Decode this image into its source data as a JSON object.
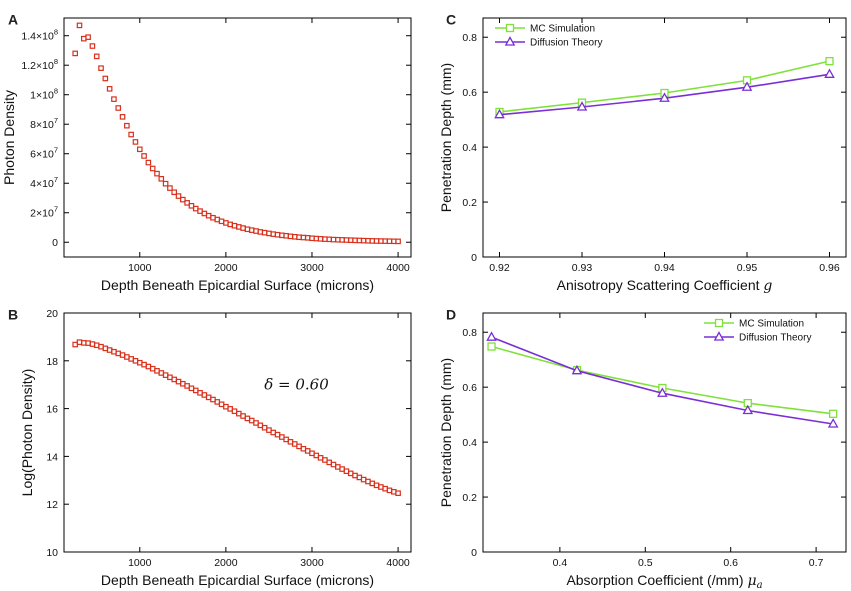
{
  "chart_data": [
    {
      "panel": "A",
      "type": "scatter",
      "xlabel": "Depth Beneath Epicardial Surface (microns)",
      "ylabel": "Photon Density",
      "xlim": [
        120,
        4150
      ],
      "ylim": [
        -10000000,
        152000000
      ],
      "x_ticks": [
        1000,
        2000,
        3000,
        4000
      ],
      "x_tick_labels": [
        "1000",
        "2000",
        "3000",
        "4000"
      ],
      "y_ticks": [
        0,
        20000000,
        40000000,
        60000000,
        80000000,
        100000000,
        120000000,
        140000000
      ],
      "y_tick_mantissa": [
        "0",
        "2×10",
        "4×10",
        "6×10",
        "8×10",
        "1×10",
        "1.2×10",
        "1.4×10"
      ],
      "y_tick_exponent": [
        "",
        "7",
        "7",
        "7",
        "7",
        "8",
        "8",
        "8"
      ],
      "marker_color": "#d9301c",
      "series": [
        {
          "name": "Photon Density",
          "x": [
            250,
            300,
            350,
            400,
            450,
            500,
            550,
            600,
            650,
            700,
            750,
            800,
            850,
            900,
            950,
            1000,
            1050,
            1100,
            1150,
            1200,
            1250,
            1300,
            1350,
            1400,
            1450,
            1500,
            1550,
            1600,
            1650,
            1700,
            1750,
            1800,
            1850,
            1900,
            1950,
            2000,
            2050,
            2100,
            2150,
            2200,
            2250,
            2300,
            2350,
            2400,
            2450,
            2500,
            2550,
            2600,
            2650,
            2700,
            2750,
            2800,
            2850,
            2900,
            2950,
            3000,
            3050,
            3100,
            3150,
            3200,
            3250,
            3300,
            3350,
            3400,
            3450,
            3500,
            3550,
            3600,
            3650,
            3700,
            3750,
            3800,
            3850,
            3900,
            3950,
            4000
          ],
          "y": [
            128000000,
            147000000,
            138000000,
            139000000,
            133000000,
            126000000,
            118000000,
            111000000,
            104000000,
            97000000,
            91000000,
            85000000,
            79000000,
            73000000,
            68000000,
            63000000,
            58500000,
            54000000,
            50000000,
            46500000,
            43000000,
            39700000,
            36700000,
            33900000,
            31300000,
            28900000,
            26700000,
            24700000,
            22800000,
            21100000,
            19500000,
            18000000,
            16600000,
            15400000,
            14200000,
            13100000,
            12100000,
            11200000,
            10400000,
            9600000,
            8800000,
            8200000,
            7600000,
            7000000,
            6500000,
            6000000,
            5500000,
            5100000,
            4700000,
            4400000,
            4000000,
            3700000,
            3400000,
            3200000,
            3000000,
            2700000,
            2500000,
            2300000,
            2100000,
            2000000,
            1800000,
            1700000,
            1600000,
            1500000,
            1400000,
            1300000,
            1200000,
            1100000,
            1000000,
            900000,
            850000,
            800000,
            750000,
            700000,
            650000,
            600000
          ]
        }
      ]
    },
    {
      "panel": "B",
      "type": "scatter",
      "xlabel": "Depth Beneath Epicardial Surface (microns)",
      "ylabel": "Log(Photon Density)",
      "xlim": [
        120,
        4150
      ],
      "ylim": [
        10,
        20
      ],
      "x_ticks": [
        1000,
        2000,
        3000,
        4000
      ],
      "x_tick_labels": [
        "1000",
        "2000",
        "3000",
        "4000"
      ],
      "y_ticks": [
        10,
        12,
        14,
        16,
        18,
        20
      ],
      "y_tick_labels": [
        "10",
        "12",
        "14",
        "16",
        "18",
        "20"
      ],
      "annotation": {
        "text": "δ = 0.60",
        "x": 2820,
        "y": 16.8
      },
      "marker_color": "#d9301c",
      "series": [
        {
          "name": "Log(Photon Density)",
          "x": [
            250,
            300,
            350,
            400,
            450,
            500,
            550,
            600,
            650,
            700,
            750,
            800,
            850,
            900,
            950,
            1000,
            1050,
            1100,
            1150,
            1200,
            1250,
            1300,
            1350,
            1400,
            1450,
            1500,
            1550,
            1600,
            1650,
            1700,
            1750,
            1800,
            1850,
            1900,
            1950,
            2000,
            2050,
            2100,
            2150,
            2200,
            2250,
            2300,
            2350,
            2400,
            2450,
            2500,
            2550,
            2600,
            2650,
            2700,
            2750,
            2800,
            2850,
            2900,
            2950,
            3000,
            3050,
            3100,
            3150,
            3200,
            3250,
            3300,
            3350,
            3400,
            3450,
            3500,
            3550,
            3600,
            3650,
            3700,
            3750,
            3800,
            3850,
            3900,
            3950,
            4000
          ],
          "y": [
            18.68,
            18.78,
            18.75,
            18.74,
            18.7,
            18.65,
            18.59,
            18.52,
            18.45,
            18.38,
            18.31,
            18.24,
            18.16,
            18.08,
            18.0,
            17.92,
            17.84,
            17.76,
            17.67,
            17.58,
            17.49,
            17.4,
            17.31,
            17.22,
            17.13,
            17.04,
            16.95,
            16.85,
            16.76,
            16.66,
            16.57,
            16.47,
            16.38,
            16.28,
            16.18,
            16.08,
            15.99,
            15.89,
            15.79,
            15.69,
            15.59,
            15.5,
            15.4,
            15.3,
            15.2,
            15.1,
            15.0,
            14.91,
            14.81,
            14.71,
            14.61,
            14.52,
            14.42,
            14.32,
            14.23,
            14.13,
            14.04,
            13.94,
            13.85,
            13.75,
            13.66,
            13.56,
            13.47,
            13.38,
            13.29,
            13.2,
            13.12,
            13.03,
            12.95,
            12.87,
            12.79,
            12.72,
            12.65,
            12.58,
            12.52,
            12.46
          ]
        }
      ]
    },
    {
      "panel": "C",
      "type": "line",
      "xlabel": "Anisotropy Scattering Coefficient ",
      "xlabel_symbol": "g",
      "ylabel": "Penetration Depth (mm)",
      "xlim": [
        0.918,
        0.962
      ],
      "ylim": [
        0,
        0.87
      ],
      "x_ticks": [
        0.92,
        0.93,
        0.94,
        0.95,
        0.96
      ],
      "x_tick_labels": [
        "0.92",
        "0.93",
        "0.94",
        "0.95",
        "0.96"
      ],
      "y_ticks": [
        0,
        0.2,
        0.4,
        0.6,
        0.8
      ],
      "y_tick_labels": [
        "0",
        "0.2",
        "0.4",
        "0.6",
        "0.8"
      ],
      "x": [
        0.92,
        0.93,
        0.94,
        0.95,
        0.96
      ],
      "series": [
        {
          "name": "MC Simulation",
          "values": [
            0.528,
            0.562,
            0.597,
            0.643,
            0.713
          ],
          "color": "#7ee23a",
          "marker": "square"
        },
        {
          "name": "Diffusion Theory",
          "values": [
            0.518,
            0.546,
            0.578,
            0.618,
            0.665
          ],
          "color": "#7a2fd6",
          "marker": "triangle"
        }
      ]
    },
    {
      "panel": "D",
      "type": "line",
      "xlabel": "Absorption Coefficient (/mm) ",
      "xlabel_symbol": "μa",
      "ylabel": "Penetration Depth (mm)",
      "xlim": [
        0.31,
        0.735
      ],
      "ylim": [
        0,
        0.87
      ],
      "x_ticks": [
        0.4,
        0.5,
        0.6,
        0.7
      ],
      "x_tick_labels": [
        "0.4",
        "0.5",
        "0.6",
        "0.7"
      ],
      "y_ticks": [
        0,
        0.2,
        0.4,
        0.6,
        0.8
      ],
      "y_tick_labels": [
        "0",
        "0.2",
        "0.4",
        "0.6",
        "0.8"
      ],
      "x": [
        0.32,
        0.42,
        0.52,
        0.62,
        0.72
      ],
      "series": [
        {
          "name": "MC Simulation",
          "values": [
            0.748,
            0.662,
            0.597,
            0.542,
            0.503
          ],
          "color": "#7ee23a",
          "marker": "square"
        },
        {
          "name": "Diffusion Theory",
          "values": [
            0.782,
            0.66,
            0.578,
            0.515,
            0.466
          ],
          "color": "#7a2fd6",
          "marker": "triangle"
        }
      ]
    }
  ]
}
